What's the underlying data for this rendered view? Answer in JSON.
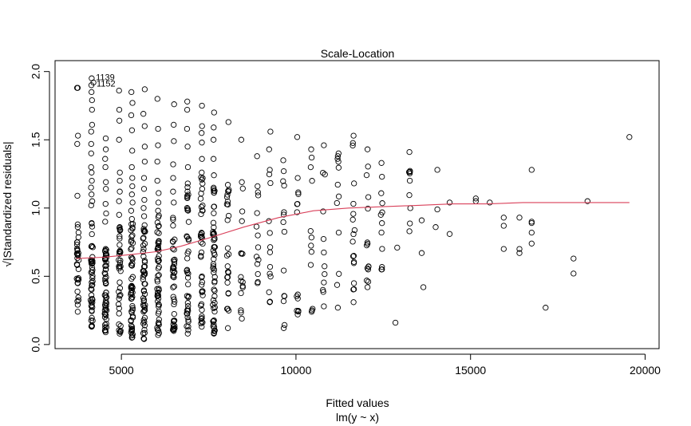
{
  "chart_data": {
    "type": "scatter",
    "title": "Scale-Location",
    "xlabel": "Fitted values",
    "sublabel": "lm(y ~ x)",
    "ylabel": "√|Standardized residuals|",
    "xlim": [
      3100,
      20400
    ],
    "ylim": [
      -0.03,
      2.08
    ],
    "x_ticks": [
      5000,
      10000,
      15000,
      20000
    ],
    "x_tick_labels": [
      "5000",
      "10000",
      "15000",
      "20000"
    ],
    "y_ticks": [
      0.0,
      0.5,
      1.0,
      1.5,
      2.0
    ],
    "y_tick_labels": [
      "0.0",
      "0.5",
      "1.0",
      "1.5",
      "2.0"
    ],
    "grid": false,
    "point_annotations": [
      {
        "x": 4200,
        "y": 1.96,
        "label": "1139"
      },
      {
        "x": 4220,
        "y": 1.93,
        "label": "1152"
      }
    ],
    "columns": [
      {
        "x": 3750,
        "y_min": 0.24,
        "y_max": 0.88,
        "n": 30,
        "extra": [
          1.09,
          1.47,
          1.53,
          1.88
        ]
      },
      {
        "x": 4150,
        "y_min": 0.13,
        "y_max": 0.89,
        "n": 45,
        "extra": [
          1.02,
          1.05,
          1.1,
          1.15,
          1.2,
          1.26,
          1.3,
          1.4,
          1.47,
          1.56,
          1.61,
          1.72,
          1.79,
          1.85,
          1.9
        ]
      },
      {
        "x": 4550,
        "y_min": 0.09,
        "y_max": 0.7,
        "n": 55,
        "extra": [
          0.9,
          0.96,
          1.03,
          1.14,
          1.19,
          1.3,
          1.36,
          1.43,
          1.51
        ]
      },
      {
        "x": 4950,
        "y_min": 0.08,
        "y_max": 0.86,
        "n": 35,
        "extra": [
          0.95,
          1.05,
          1.12,
          1.2,
          1.26,
          1.5,
          1.64,
          1.72,
          1.86
        ]
      },
      {
        "x": 5300,
        "y_min": 0.05,
        "y_max": 0.92,
        "n": 55,
        "extra": [
          0.98,
          1.04,
          1.1,
          1.16,
          1.22,
          1.3,
          1.42,
          1.57,
          1.68,
          1.77,
          1.85
        ]
      },
      {
        "x": 5650,
        "y_min": 0.04,
        "y_max": 0.94,
        "n": 50,
        "extra": [
          1.0,
          1.06,
          1.14,
          1.22,
          1.34,
          1.45,
          1.6,
          1.69,
          1.87
        ]
      },
      {
        "x": 6050,
        "y_min": 0.07,
        "y_max": 0.98,
        "n": 50,
        "extra": [
          1.04,
          1.11,
          1.2,
          1.34,
          1.46,
          1.58,
          1.8
        ]
      },
      {
        "x": 6500,
        "y_min": 0.1,
        "y_max": 1.04,
        "n": 40,
        "extra": [
          1.12,
          1.22,
          1.32,
          1.49,
          1.61,
          1.76
        ]
      },
      {
        "x": 6900,
        "y_min": 0.08,
        "y_max": 1.18,
        "n": 40,
        "extra": [
          1.3,
          1.45,
          1.58,
          1.72,
          1.78
        ]
      },
      {
        "x": 7300,
        "y_min": 0.13,
        "y_max": 1.26,
        "n": 40,
        "extra": [
          1.36,
          1.48,
          1.55,
          1.6,
          1.75
        ]
      },
      {
        "x": 7650,
        "y_min": 0.08,
        "y_max": 1.24,
        "n": 55,
        "extra": [
          1.36,
          1.5,
          1.59,
          1.7
        ]
      },
      {
        "x": 8050,
        "y_min": 0.12,
        "y_max": 1.17,
        "n": 25,
        "extra": [
          1.63
        ]
      },
      {
        "x": 8450,
        "y_min": 0.19,
        "y_max": 1.19,
        "n": 14,
        "extra": [
          1.5
        ]
      },
      {
        "x": 8900,
        "y_min": 0.45,
        "y_max": 1.16,
        "n": 11,
        "extra": [
          1.38
        ]
      },
      {
        "x": 9250,
        "y_min": 0.31,
        "y_max": 1.28,
        "n": 12,
        "extra": [
          1.43,
          1.56
        ]
      },
      {
        "x": 9650,
        "y_min": 0.12,
        "y_max": 1.27,
        "n": 11,
        "extra": [
          1.35
        ]
      },
      {
        "x": 10050,
        "y_min": 0.22,
        "y_max": 1.22,
        "n": 12,
        "extra": [
          1.52
        ]
      },
      {
        "x": 10450,
        "y_min": 0.24,
        "y_max": 1.37,
        "n": 10,
        "extra": [
          1.43
        ]
      },
      {
        "x": 10800,
        "y_min": 0.28,
        "y_max": 1.46,
        "n": 10,
        "extra": []
      },
      {
        "x": 11200,
        "y_min": 0.27,
        "y_max": 1.38,
        "n": 9,
        "extra": [
          1.4
        ]
      },
      {
        "x": 11650,
        "y_min": 0.31,
        "y_max": 1.53,
        "n": 16,
        "extra": []
      },
      {
        "x": 12050,
        "y_min": 0.42,
        "y_max": 1.43,
        "n": 13,
        "extra": []
      },
      {
        "x": 12450,
        "y_min": 0.55,
        "y_max": 1.33,
        "n": 9,
        "extra": [
          0.95
        ]
      },
      {
        "x": 13250,
        "y_min": 0.83,
        "y_max": 1.41,
        "n": 8,
        "extra": []
      }
    ],
    "outliers": [
      {
        "x": 12850,
        "y": 0.16
      },
      {
        "x": 12900,
        "y": 0.71
      },
      {
        "x": 13650,
        "y": 0.42
      },
      {
        "x": 13600,
        "y": 0.67
      },
      {
        "x": 13600,
        "y": 0.91
      },
      {
        "x": 14000,
        "y": 0.86
      },
      {
        "x": 14050,
        "y": 0.99
      },
      {
        "x": 14050,
        "y": 1.28
      },
      {
        "x": 14400,
        "y": 0.81
      },
      {
        "x": 14400,
        "y": 1.04
      },
      {
        "x": 15150,
        "y": 1.05
      },
      {
        "x": 15150,
        "y": 1.07
      },
      {
        "x": 15550,
        "y": 1.04
      },
      {
        "x": 15950,
        "y": 0.7
      },
      {
        "x": 15950,
        "y": 0.87
      },
      {
        "x": 15950,
        "y": 0.93
      },
      {
        "x": 16400,
        "y": 0.67
      },
      {
        "x": 16400,
        "y": 0.7
      },
      {
        "x": 16400,
        "y": 0.93
      },
      {
        "x": 16750,
        "y": 0.74
      },
      {
        "x": 16750,
        "y": 0.82
      },
      {
        "x": 16750,
        "y": 0.89
      },
      {
        "x": 16750,
        "y": 0.9
      },
      {
        "x": 16750,
        "y": 1.28
      },
      {
        "x": 17150,
        "y": 0.27
      },
      {
        "x": 17950,
        "y": 0.52
      },
      {
        "x": 17950,
        "y": 0.63
      },
      {
        "x": 18350,
        "y": 1.05
      },
      {
        "x": 19550,
        "y": 1.52
      },
      {
        "x": 3750,
        "y": 1.88
      },
      {
        "x": 4150,
        "y": 1.95
      },
      {
        "x": 4200,
        "y": 1.92
      }
    ],
    "smooth_line": {
      "color": "#d9405a",
      "points": [
        [
          3700,
          0.63
        ],
        [
          4500,
          0.64
        ],
        [
          5300,
          0.66
        ],
        [
          6000,
          0.68
        ],
        [
          6700,
          0.72
        ],
        [
          7500,
          0.78
        ],
        [
          8500,
          0.86
        ],
        [
          9500,
          0.93
        ],
        [
          10500,
          0.98
        ],
        [
          11500,
          1.0
        ],
        [
          12500,
          1.01
        ],
        [
          13500,
          1.02
        ],
        [
          14500,
          1.03
        ],
        [
          15500,
          1.03
        ],
        [
          16500,
          1.04
        ],
        [
          17500,
          1.04
        ],
        [
          18500,
          1.04
        ],
        [
          19550,
          1.04
        ]
      ]
    }
  }
}
